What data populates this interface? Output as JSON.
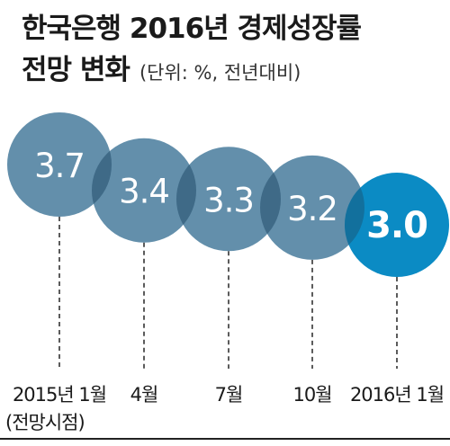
{
  "title_line1": "한국은행 2016년 경제성장률",
  "title_line2": "전망 변화",
  "unit_note": "(단위: %, 전년대비)",
  "colors": {
    "bubble": "#4d7f9f",
    "highlight": "#0b8bc4",
    "label": "#ffffff",
    "stem": "#333333"
  },
  "chart_data": {
    "type": "bubble",
    "categories": [
      "2015년 1월\n(전망시점)",
      "4월",
      "7월",
      "10월",
      "2016년 1월"
    ],
    "values": [
      3.7,
      3.4,
      3.3,
      3.2,
      3.0
    ],
    "value_labels": [
      "3.7",
      "3.4",
      "3.3",
      "3.2",
      "3.0"
    ],
    "highlight_index": 4,
    "title": "한국은행 2016년 경제성장률 전망 변화",
    "unit": "%, 전년대비"
  }
}
